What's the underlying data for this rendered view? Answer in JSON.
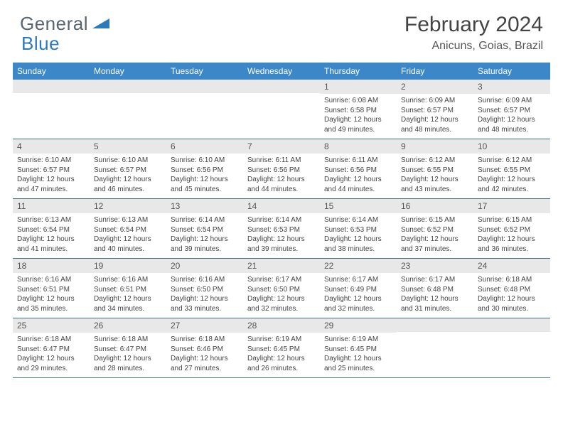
{
  "logo": {
    "text1": "General",
    "text2": "Blue"
  },
  "title": "February 2024",
  "location": "Anicuns, Goias, Brazil",
  "colors": {
    "header_bg": "#3b87c8",
    "header_text": "#ffffff",
    "daynum_bg": "#e8e8e8",
    "row_border": "#3b6fa0",
    "logo_gray": "#5a6570",
    "logo_blue": "#2b7bbb"
  },
  "weekdays": [
    "Sunday",
    "Monday",
    "Tuesday",
    "Wednesday",
    "Thursday",
    "Friday",
    "Saturday"
  ],
  "weeks": [
    [
      {
        "n": "",
        "sr": "",
        "ss": "",
        "dl": ""
      },
      {
        "n": "",
        "sr": "",
        "ss": "",
        "dl": ""
      },
      {
        "n": "",
        "sr": "",
        "ss": "",
        "dl": ""
      },
      {
        "n": "",
        "sr": "",
        "ss": "",
        "dl": ""
      },
      {
        "n": "1",
        "sr": "Sunrise: 6:08 AM",
        "ss": "Sunset: 6:58 PM",
        "dl": "Daylight: 12 hours and 49 minutes."
      },
      {
        "n": "2",
        "sr": "Sunrise: 6:09 AM",
        "ss": "Sunset: 6:57 PM",
        "dl": "Daylight: 12 hours and 48 minutes."
      },
      {
        "n": "3",
        "sr": "Sunrise: 6:09 AM",
        "ss": "Sunset: 6:57 PM",
        "dl": "Daylight: 12 hours and 48 minutes."
      }
    ],
    [
      {
        "n": "4",
        "sr": "Sunrise: 6:10 AM",
        "ss": "Sunset: 6:57 PM",
        "dl": "Daylight: 12 hours and 47 minutes."
      },
      {
        "n": "5",
        "sr": "Sunrise: 6:10 AM",
        "ss": "Sunset: 6:57 PM",
        "dl": "Daylight: 12 hours and 46 minutes."
      },
      {
        "n": "6",
        "sr": "Sunrise: 6:10 AM",
        "ss": "Sunset: 6:56 PM",
        "dl": "Daylight: 12 hours and 45 minutes."
      },
      {
        "n": "7",
        "sr": "Sunrise: 6:11 AM",
        "ss": "Sunset: 6:56 PM",
        "dl": "Daylight: 12 hours and 44 minutes."
      },
      {
        "n": "8",
        "sr": "Sunrise: 6:11 AM",
        "ss": "Sunset: 6:56 PM",
        "dl": "Daylight: 12 hours and 44 minutes."
      },
      {
        "n": "9",
        "sr": "Sunrise: 6:12 AM",
        "ss": "Sunset: 6:55 PM",
        "dl": "Daylight: 12 hours and 43 minutes."
      },
      {
        "n": "10",
        "sr": "Sunrise: 6:12 AM",
        "ss": "Sunset: 6:55 PM",
        "dl": "Daylight: 12 hours and 42 minutes."
      }
    ],
    [
      {
        "n": "11",
        "sr": "Sunrise: 6:13 AM",
        "ss": "Sunset: 6:54 PM",
        "dl": "Daylight: 12 hours and 41 minutes."
      },
      {
        "n": "12",
        "sr": "Sunrise: 6:13 AM",
        "ss": "Sunset: 6:54 PM",
        "dl": "Daylight: 12 hours and 40 minutes."
      },
      {
        "n": "13",
        "sr": "Sunrise: 6:14 AM",
        "ss": "Sunset: 6:54 PM",
        "dl": "Daylight: 12 hours and 39 minutes."
      },
      {
        "n": "14",
        "sr": "Sunrise: 6:14 AM",
        "ss": "Sunset: 6:53 PM",
        "dl": "Daylight: 12 hours and 39 minutes."
      },
      {
        "n": "15",
        "sr": "Sunrise: 6:14 AM",
        "ss": "Sunset: 6:53 PM",
        "dl": "Daylight: 12 hours and 38 minutes."
      },
      {
        "n": "16",
        "sr": "Sunrise: 6:15 AM",
        "ss": "Sunset: 6:52 PM",
        "dl": "Daylight: 12 hours and 37 minutes."
      },
      {
        "n": "17",
        "sr": "Sunrise: 6:15 AM",
        "ss": "Sunset: 6:52 PM",
        "dl": "Daylight: 12 hours and 36 minutes."
      }
    ],
    [
      {
        "n": "18",
        "sr": "Sunrise: 6:16 AM",
        "ss": "Sunset: 6:51 PM",
        "dl": "Daylight: 12 hours and 35 minutes."
      },
      {
        "n": "19",
        "sr": "Sunrise: 6:16 AM",
        "ss": "Sunset: 6:51 PM",
        "dl": "Daylight: 12 hours and 34 minutes."
      },
      {
        "n": "20",
        "sr": "Sunrise: 6:16 AM",
        "ss": "Sunset: 6:50 PM",
        "dl": "Daylight: 12 hours and 33 minutes."
      },
      {
        "n": "21",
        "sr": "Sunrise: 6:17 AM",
        "ss": "Sunset: 6:50 PM",
        "dl": "Daylight: 12 hours and 32 minutes."
      },
      {
        "n": "22",
        "sr": "Sunrise: 6:17 AM",
        "ss": "Sunset: 6:49 PM",
        "dl": "Daylight: 12 hours and 32 minutes."
      },
      {
        "n": "23",
        "sr": "Sunrise: 6:17 AM",
        "ss": "Sunset: 6:48 PM",
        "dl": "Daylight: 12 hours and 31 minutes."
      },
      {
        "n": "24",
        "sr": "Sunrise: 6:18 AM",
        "ss": "Sunset: 6:48 PM",
        "dl": "Daylight: 12 hours and 30 minutes."
      }
    ],
    [
      {
        "n": "25",
        "sr": "Sunrise: 6:18 AM",
        "ss": "Sunset: 6:47 PM",
        "dl": "Daylight: 12 hours and 29 minutes."
      },
      {
        "n": "26",
        "sr": "Sunrise: 6:18 AM",
        "ss": "Sunset: 6:47 PM",
        "dl": "Daylight: 12 hours and 28 minutes."
      },
      {
        "n": "27",
        "sr": "Sunrise: 6:18 AM",
        "ss": "Sunset: 6:46 PM",
        "dl": "Daylight: 12 hours and 27 minutes."
      },
      {
        "n": "28",
        "sr": "Sunrise: 6:19 AM",
        "ss": "Sunset: 6:45 PM",
        "dl": "Daylight: 12 hours and 26 minutes."
      },
      {
        "n": "29",
        "sr": "Sunrise: 6:19 AM",
        "ss": "Sunset: 6:45 PM",
        "dl": "Daylight: 12 hours and 25 minutes."
      },
      {
        "n": "",
        "sr": "",
        "ss": "",
        "dl": ""
      },
      {
        "n": "",
        "sr": "",
        "ss": "",
        "dl": ""
      }
    ]
  ]
}
